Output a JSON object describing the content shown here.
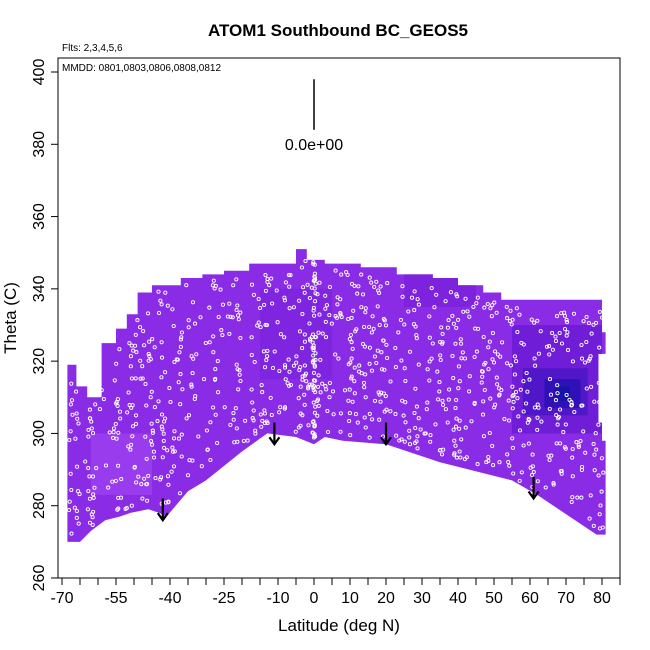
{
  "chart_data": {
    "type": "heatmap",
    "title": "ATOM1 Southbound BC_GEOS5",
    "subtitle_flights": "Flts: 2,3,4,5,6",
    "subtitle_dates": "MMDD: 0801,0803,0806,0808,0812",
    "xlabel": "Latitude (deg N)",
    "ylabel": "Theta (C)",
    "xlim": [
      -70,
      85
    ],
    "ylim": [
      260,
      405
    ],
    "x_ticks": [
      -70,
      -55,
      -40,
      -25,
      -10,
      0,
      10,
      20,
      30,
      40,
      50,
      60,
      70,
      80
    ],
    "x_minor_ticks": [
      -65,
      -60,
      -50,
      -45,
      -35,
      -30,
      -20,
      -15,
      -5,
      5,
      15,
      25,
      35,
      45,
      55,
      65,
      75,
      85
    ],
    "y_ticks": [
      260,
      280,
      300,
      320,
      340,
      360,
      380,
      400
    ],
    "colorscale_label": "0.0e+00",
    "colors": {
      "field_main": "#8a2be6",
      "field_light": "#9438ea",
      "field_dark": "#6e1fd6",
      "deep_blue": "#1414a8",
      "points": "#ffffff",
      "arrows": "#000000"
    },
    "upper_boundary": [
      [
        -68.5,
        319
      ],
      [
        -66,
        319
      ],
      [
        -66,
        313
      ],
      [
        -63,
        313
      ],
      [
        -63,
        310
      ],
      [
        -59,
        310
      ],
      [
        -59,
        325
      ],
      [
        -55,
        325
      ],
      [
        -55,
        329
      ],
      [
        -52,
        329
      ],
      [
        -52,
        333
      ],
      [
        -49,
        333
      ],
      [
        -49,
        339
      ],
      [
        -45,
        339
      ],
      [
        -45,
        341
      ],
      [
        -37,
        341
      ],
      [
        -37,
        343
      ],
      [
        -31,
        343
      ],
      [
        -31,
        344
      ],
      [
        -25,
        344
      ],
      [
        -25,
        345
      ],
      [
        -18,
        345
      ],
      [
        -18,
        347
      ],
      [
        -5,
        347
      ],
      [
        -5,
        351
      ],
      [
        -2,
        351
      ],
      [
        -2,
        348
      ],
      [
        3,
        348
      ],
      [
        3,
        347
      ],
      [
        13,
        347
      ],
      [
        13,
        346
      ],
      [
        23,
        346
      ],
      [
        23,
        344
      ],
      [
        33,
        344
      ],
      [
        33,
        343
      ],
      [
        40,
        343
      ],
      [
        40,
        341
      ],
      [
        47,
        341
      ],
      [
        47,
        339
      ],
      [
        52,
        339
      ],
      [
        52,
        337
      ],
      [
        59,
        337
      ],
      [
        59,
        337
      ],
      [
        80,
        337
      ],
      [
        80,
        328
      ],
      [
        81,
        328
      ],
      [
        81,
        322
      ],
      [
        79,
        322
      ],
      [
        79,
        303
      ],
      [
        80,
        303
      ],
      [
        80,
        298
      ],
      [
        81,
        298
      ],
      [
        81,
        272
      ]
    ],
    "lower_boundary": [
      [
        81,
        272
      ],
      [
        78.5,
        272
      ],
      [
        62,
        283
      ],
      [
        55,
        287
      ],
      [
        35,
        292
      ],
      [
        20,
        297
      ],
      [
        8,
        298
      ],
      [
        3,
        299
      ],
      [
        0,
        297
      ],
      [
        -5,
        299
      ],
      [
        -13,
        300
      ],
      [
        -20,
        295
      ],
      [
        -30,
        287
      ],
      [
        -35,
        284
      ],
      [
        -41,
        277
      ],
      [
        -43,
        278
      ],
      [
        -46,
        279
      ],
      [
        -51,
        278
      ],
      [
        -54,
        277
      ],
      [
        -58,
        276
      ],
      [
        -62,
        273
      ],
      [
        -65,
        270
      ],
      [
        -67,
        270
      ],
      [
        -68.5,
        270
      ]
    ],
    "color_patches": [
      {
        "x": [
          -62,
          -45
        ],
        "y": [
          283,
          300
        ],
        "color": "#9b40ee"
      },
      {
        "x": [
          -15,
          5
        ],
        "y": [
          315,
          340
        ],
        "color": "#7d24dd"
      },
      {
        "x": [
          25,
          45
        ],
        "y": [
          335,
          345
        ],
        "color": "#7a22dc"
      },
      {
        "x": [
          55,
          80
        ],
        "y": [
          300,
          330
        ],
        "color": "#6a1bd2"
      },
      {
        "x": [
          58,
          76
        ],
        "y": [
          305,
          318
        ],
        "color": "#4a16c4"
      },
      {
        "x": [
          64,
          74
        ],
        "y": [
          307,
          315
        ],
        "color": "#2a10b4"
      },
      {
        "x": [
          67,
          71
        ],
        "y": [
          309,
          313
        ],
        "color": "#1414a8"
      }
    ],
    "arrows": [
      {
        "lat": -42,
        "theta_top": 282,
        "theta_tip": 276
      },
      {
        "lat": -11,
        "theta_top": 303,
        "theta_tip": 297
      },
      {
        "lat": 20,
        "theta_top": 303,
        "theta_tip": 297
      },
      {
        "lat": 61,
        "theta_top": 288,
        "theta_tip": 282
      }
    ],
    "legend_bar": {
      "lat": 0,
      "theta_top": 398,
      "theta_bottom": 384
    }
  }
}
